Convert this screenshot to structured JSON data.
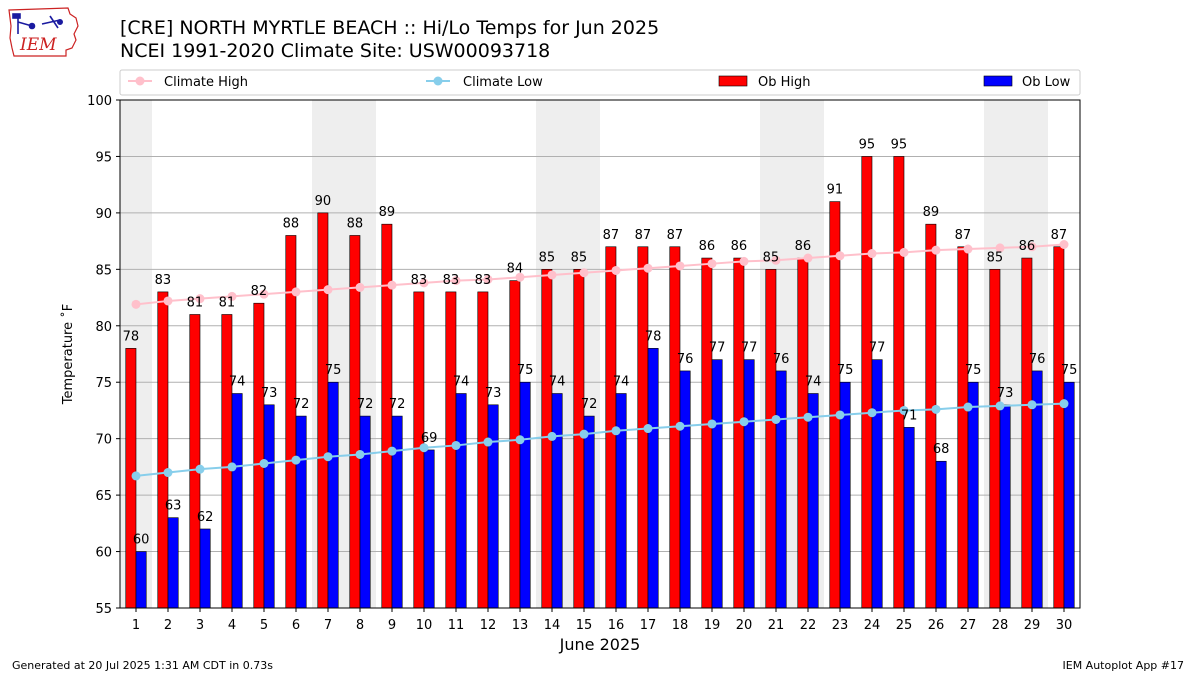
{
  "header": {
    "title_line1": "[CRE] NORTH MYRTLE BEACH :: Hi/Lo Temps for Jun 2025",
    "title_line2": "NCEI 1991-2020 Climate Site: USW00093718",
    "logo_text": "IEM"
  },
  "footer": {
    "generated": "Generated at 20 Jul 2025 1:31 AM CDT in 0.73s",
    "app": "IEM Autoplot App #17"
  },
  "colors": {
    "ob_high": "#ff0000",
    "ob_low": "#0000ff",
    "climate_high": "#ffc0cb",
    "climate_low": "#87ceeb",
    "weekend_shade": "#eeeeee",
    "logo_red": "#cc2222",
    "logo_blue": "#1a1aa0"
  },
  "chart_data": {
    "type": "bar",
    "xlabel": "June 2025",
    "ylabel": "Temperature ˚F",
    "ylim": [
      55,
      100
    ],
    "yticks": [
      55,
      60,
      65,
      70,
      75,
      80,
      85,
      90,
      95,
      100
    ],
    "grid": "horizontal",
    "legend_position": "top",
    "categories": [
      1,
      2,
      3,
      4,
      5,
      6,
      7,
      8,
      9,
      10,
      11,
      12,
      13,
      14,
      15,
      16,
      17,
      18,
      19,
      20,
      21,
      22,
      23,
      24,
      25,
      26,
      27,
      28,
      29,
      30
    ],
    "shaded_weekend_days": [
      1,
      7,
      8,
      14,
      15,
      21,
      22,
      28,
      29
    ],
    "series": [
      {
        "name": "Ob High",
        "kind": "bar",
        "values": [
          78,
          83,
          81,
          81,
          82,
          88,
          90,
          88,
          89,
          83,
          83,
          83,
          84,
          85,
          85,
          87,
          87,
          87,
          86,
          86,
          85,
          86,
          91,
          95,
          95,
          89,
          87,
          85,
          86,
          87
        ]
      },
      {
        "name": "Ob Low",
        "kind": "bar",
        "values": [
          60,
          63,
          62,
          74,
          73,
          72,
          75,
          72,
          72,
          69,
          74,
          73,
          75,
          74,
          72,
          74,
          78,
          76,
          77,
          77,
          76,
          74,
          75,
          77,
          71,
          68,
          75,
          73,
          76,
          75
        ]
      },
      {
        "name": "Climate High",
        "kind": "line",
        "values": [
          81.9,
          82.2,
          82.4,
          82.6,
          82.8,
          83.0,
          83.2,
          83.4,
          83.6,
          83.8,
          84.0,
          84.1,
          84.3,
          84.5,
          84.7,
          84.9,
          85.1,
          85.3,
          85.5,
          85.7,
          85.8,
          86.0,
          86.2,
          86.4,
          86.5,
          86.7,
          86.8,
          86.9,
          87.0,
          87.2
        ]
      },
      {
        "name": "Climate Low",
        "kind": "line",
        "values": [
          66.7,
          67.0,
          67.3,
          67.5,
          67.8,
          68.1,
          68.4,
          68.6,
          68.9,
          69.2,
          69.4,
          69.7,
          69.9,
          70.2,
          70.4,
          70.7,
          70.9,
          71.1,
          71.3,
          71.5,
          71.7,
          71.9,
          72.1,
          72.3,
          72.5,
          72.6,
          72.8,
          72.9,
          73.0,
          73.1
        ]
      }
    ]
  }
}
